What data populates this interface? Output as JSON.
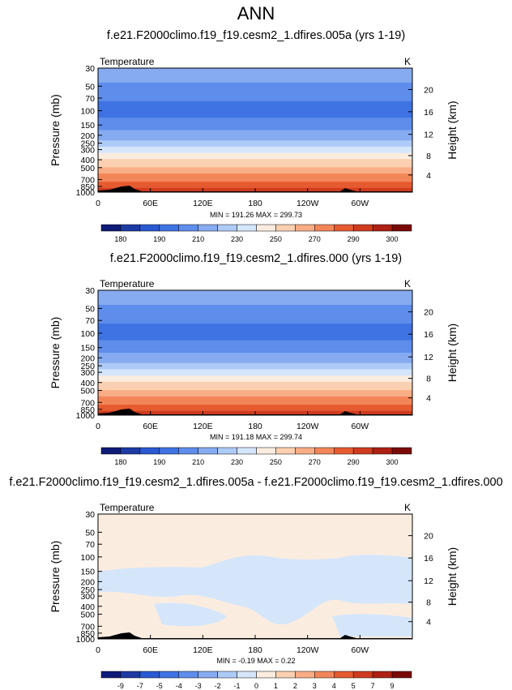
{
  "main_title": "ANN",
  "panels": [
    {
      "title": "f.e21.F2000climo.f19_f19.cesm2_1.dfires.005a (yrs 1-19)",
      "left_label": "Temperature",
      "right_label": "K",
      "stats": "MIN = 191.26  MAX = 299.73"
    },
    {
      "title": "f.e21.F2000climo.f19_f19.cesm2_1.dfires.000 (yrs 1-19)",
      "left_label": "Temperature",
      "right_label": "K",
      "stats": "MIN = 191.18  MAX = 299.74"
    },
    {
      "title": "f.e21.F2000climo.f19_f19.cesm2_1.dfires.005a - f.e21.F2000climo.f19_f19.cesm2_1.dfires.000",
      "left_label": "Temperature",
      "right_label": "K",
      "stats": "MIN = -0.19  MAX =  0.22"
    }
  ],
  "chart_data": [
    {
      "type": "heatmap",
      "title": "f.e21.F2000climo.f19_f19.cesm2_1.dfires.005a (yrs 1-19)",
      "variable": "Temperature",
      "units": "K",
      "ylabel": "Pressure (mb)",
      "y2label": "Height (km)",
      "x_ticks": [
        "0",
        "60E",
        "120E",
        "180",
        "120W",
        "60W"
      ],
      "y_ticks": [
        "30",
        "50",
        "70",
        "100",
        "150",
        "200",
        "250",
        "300",
        "400",
        "500",
        "700",
        "850",
        "1000"
      ],
      "y2_ticks": [
        "20",
        "16",
        "12",
        "8",
        "4"
      ],
      "ylim": [
        1000,
        30
      ],
      "y_scale": "log",
      "min": 191.26,
      "max": 299.73,
      "colorbar_labels": [
        "180",
        "190",
        "210",
        "230",
        "250",
        "270",
        "290",
        "300"
      ],
      "colorbar_colors": [
        "#0f1b78",
        "#1d3aa3",
        "#2a59d1",
        "#3f73e3",
        "#5e8deb",
        "#86abf1",
        "#aecbf7",
        "#d5e6fb",
        "#fbece0",
        "#fbd0b1",
        "#f8ad85",
        "#f28659",
        "#e65a30",
        "#cf3b1f",
        "#ad2014",
        "#7a0a08"
      ],
      "profile": [
        {
          "p": 30,
          "value": 216
        },
        {
          "p": 50,
          "value": 208
        },
        {
          "p": 70,
          "value": 202
        },
        {
          "p": 100,
          "value": 195
        },
        {
          "p": 150,
          "value": 205
        },
        {
          "p": 200,
          "value": 214
        },
        {
          "p": 250,
          "value": 224
        },
        {
          "p": 300,
          "value": 234
        },
        {
          "p": 400,
          "value": 250
        },
        {
          "p": 500,
          "value": 262
        },
        {
          "p": 700,
          "value": 278
        },
        {
          "p": 850,
          "value": 287
        },
        {
          "p": 1000,
          "value": 295
        }
      ]
    },
    {
      "type": "heatmap",
      "title": "f.e21.F2000climo.f19_f19.cesm2_1.dfires.000 (yrs 1-19)",
      "variable": "Temperature",
      "units": "K",
      "ylabel": "Pressure (mb)",
      "y2label": "Height (km)",
      "x_ticks": [
        "0",
        "60E",
        "120E",
        "180",
        "120W",
        "60W"
      ],
      "y_ticks": [
        "30",
        "50",
        "70",
        "100",
        "150",
        "200",
        "250",
        "300",
        "400",
        "500",
        "700",
        "850",
        "1000"
      ],
      "y2_ticks": [
        "20",
        "16",
        "12",
        "8",
        "4"
      ],
      "ylim": [
        1000,
        30
      ],
      "y_scale": "log",
      "min": 191.18,
      "max": 299.74,
      "colorbar_labels": [
        "180",
        "190",
        "210",
        "230",
        "250",
        "270",
        "290",
        "300"
      ],
      "colorbar_colors": [
        "#0f1b78",
        "#1d3aa3",
        "#2a59d1",
        "#3f73e3",
        "#5e8deb",
        "#86abf1",
        "#aecbf7",
        "#d5e6fb",
        "#fbece0",
        "#fbd0b1",
        "#f8ad85",
        "#f28659",
        "#e65a30",
        "#cf3b1f",
        "#ad2014",
        "#7a0a08"
      ],
      "profile": [
        {
          "p": 30,
          "value": 216
        },
        {
          "p": 50,
          "value": 208
        },
        {
          "p": 70,
          "value": 202
        },
        {
          "p": 100,
          "value": 195
        },
        {
          "p": 150,
          "value": 205
        },
        {
          "p": 200,
          "value": 214
        },
        {
          "p": 250,
          "value": 224
        },
        {
          "p": 300,
          "value": 234
        },
        {
          "p": 400,
          "value": 250
        },
        {
          "p": 500,
          "value": 262
        },
        {
          "p": 700,
          "value": 278
        },
        {
          "p": 850,
          "value": 287
        },
        {
          "p": 1000,
          "value": 295
        }
      ]
    },
    {
      "type": "heatmap",
      "title": "f.e21.F2000climo.f19_f19.cesm2_1.dfires.005a - f.e21.F2000climo.f19_f19.cesm2_1.dfires.000",
      "variable": "Temperature",
      "units": "K",
      "ylabel": "Pressure (mb)",
      "y2label": "Height (km)",
      "x_ticks": [
        "0",
        "60E",
        "120E",
        "180",
        "120W",
        "60W"
      ],
      "y_ticks": [
        "30",
        "50",
        "70",
        "100",
        "150",
        "200",
        "250",
        "300",
        "400",
        "500",
        "700",
        "850",
        "1000"
      ],
      "y2_ticks": [
        "20",
        "16",
        "12",
        "8",
        "4"
      ],
      "ylim": [
        1000,
        30
      ],
      "y_scale": "log",
      "min": -0.19,
      "max": 0.22,
      "colorbar_labels": [
        "-9",
        "-7",
        "-5",
        "-4",
        "-3",
        "-2",
        "-1",
        "0",
        "1",
        "2",
        "3",
        "4",
        "5",
        "7",
        "9"
      ],
      "colorbar_colors": [
        "#0f1b78",
        "#1d3aa3",
        "#2a59d1",
        "#3f73e3",
        "#5e8deb",
        "#86abf1",
        "#aecbf7",
        "#d5e6fb",
        "#fbece0",
        "#fbd0b1",
        "#f8ad85",
        "#f28659",
        "#e65a30",
        "#cf3b1f",
        "#ad2014",
        "#7a0a08"
      ],
      "regions": [
        {
          "value_range": [
            0,
            1
          ],
          "color": "#fbece0",
          "description_level": "background"
        },
        {
          "value_range": [
            -1,
            0
          ],
          "color": "#d5e6fb",
          "description_level": "mid-troposphere patches"
        }
      ]
    }
  ]
}
